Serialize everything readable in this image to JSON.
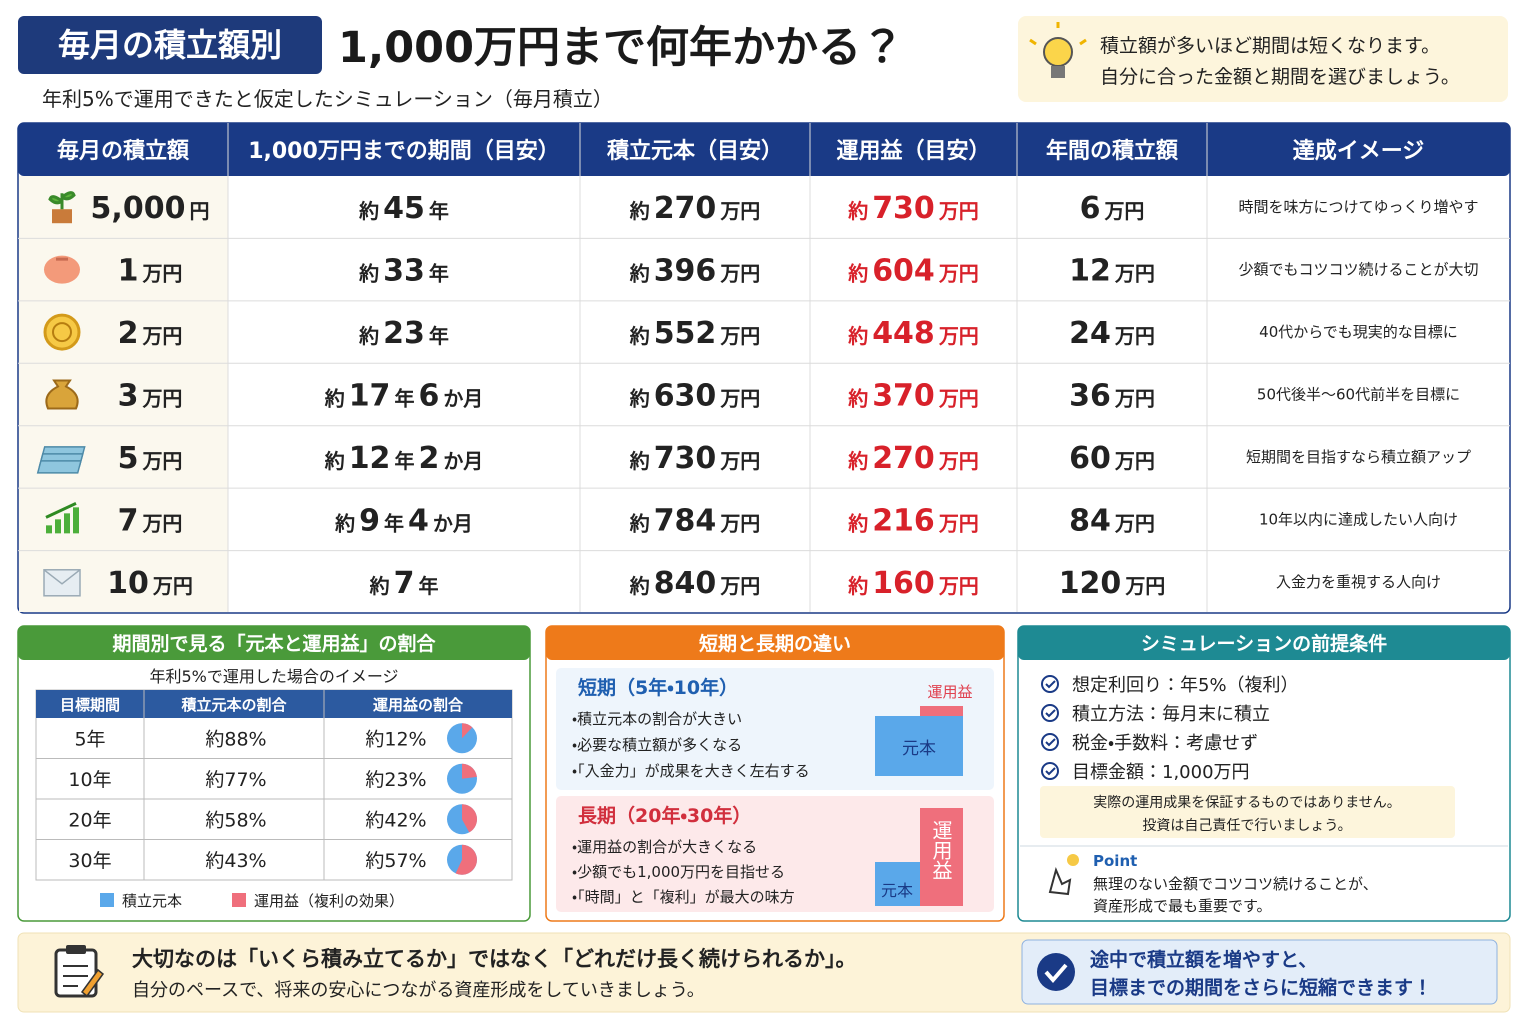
{
  "header": {
    "badge": "毎月の積立額別",
    "title": "1,000万円まで何年かかる？",
    "subtitle": "年利5%で運用できたと仮定したシミュレーション（毎月積立）"
  },
  "tip": {
    "lines": [
      "積立額が多いほど期間は短くなります。",
      "自分に合った金額と期間を選びましょう。"
    ]
  },
  "table": {
    "headers": [
      "毎月の積立額",
      "1,000万円までの期間（目安）",
      "積立元本（目安）",
      "運用益（目安）",
      "年間の積立額",
      "達成イメージ"
    ],
    "rows": [
      [
        [
          "5,000",
          "円"
        ],
        [
          "約",
          "45",
          "年"
        ],
        [
          "約",
          "270",
          "万円"
        ],
        [
          "約",
          "730",
          "万円"
        ],
        [
          "6",
          "万円"
        ],
        "時間を味方につけてゆっくり増やす"
      ],
      [
        [
          "1",
          "万円"
        ],
        [
          "約",
          "33",
          "年"
        ],
        [
          "約",
          "396",
          "万円"
        ],
        [
          "約",
          "604",
          "万円"
        ],
        [
          "12",
          "万円"
        ],
        "少額でもコツコツ続けることが大切"
      ],
      [
        [
          "2",
          "万円"
        ],
        [
          "約",
          "23",
          "年"
        ],
        [
          "約",
          "552",
          "万円"
        ],
        [
          "約",
          "448",
          "万円"
        ],
        [
          "24",
          "万円"
        ],
        "40代からでも現実的な目標に"
      ],
      [
        [
          "3",
          "万円"
        ],
        [
          "約",
          "17",
          "年",
          "6",
          "か月"
        ],
        [
          "約",
          "630",
          "万円"
        ],
        [
          "約",
          "370",
          "万円"
        ],
        [
          "36",
          "万円"
        ],
        "50代後半〜60代前半を目標に"
      ],
      [
        [
          "5",
          "万円"
        ],
        [
          "約",
          "12",
          "年",
          "2",
          "か月"
        ],
        [
          "約",
          "730",
          "万円"
        ],
        [
          "約",
          "270",
          "万円"
        ],
        [
          "60",
          "万円"
        ],
        "短期間を目指すなら積立額アップ"
      ],
      [
        [
          "7",
          "万円"
        ],
        [
          "約",
          "9",
          "年",
          "4",
          "か月"
        ],
        [
          "約",
          "784",
          "万円"
        ],
        [
          "約",
          "216",
          "万円"
        ],
        [
          "84",
          "万円"
        ],
        "10年以内に達成したい人向け"
      ],
      [
        [
          "10",
          "万円"
        ],
        [
          "約",
          "7",
          "年"
        ],
        [
          "約",
          "840",
          "万円"
        ],
        [
          "約",
          "160",
          "万円"
        ],
        [
          "120",
          "万円"
        ],
        "入金力を重視する人向け"
      ]
    ]
  },
  "ratio_panel": {
    "title": "期間別で見る「元本と運用益」の割合",
    "subtitle": "年利5%で運用した場合のイメージ",
    "headers": [
      "目標期間",
      "積立元本の割合",
      "運用益の割合"
    ],
    "rows": [
      {
        "period": "5年",
        "principal_label": "約88%",
        "gain_label": "約12%",
        "gain": 12
      },
      {
        "period": "10年",
        "principal_label": "約77%",
        "gain_label": "約23%",
        "gain": 23
      },
      {
        "period": "20年",
        "principal_label": "約58%",
        "gain_label": "約42%",
        "gain": 42
      },
      {
        "period": "30年",
        "principal_label": "約43%",
        "gain_label": "約57%",
        "gain": 57
      }
    ],
    "legend": [
      "積立元本",
      "運用益（複利の効果）"
    ]
  },
  "compare_panel": {
    "title": "短期と長期の違い",
    "short": {
      "heading": "短期（5年・10年）",
      "bullets": [
        "・積立元本の割合が大きい",
        "・必要な積立額が多くなる",
        "・「入金力」が成果を大きく左右する"
      ],
      "gain_label": "運用益",
      "principal_label": "元本"
    },
    "long": {
      "heading": "長期（20年・30年）",
      "bullets": [
        "・運用益の割合が大きくなる",
        "・少額でも1,000万円を目指せる",
        "・「時間」と「複利」が最大の味方"
      ],
      "gain_label": "運用益",
      "principal_label": "元本"
    }
  },
  "conditions_panel": {
    "title": "シミュレーションの前提条件",
    "items": [
      "想定利回り：年5%（複利）",
      "積立方法：毎月末に積立",
      "税金・手数料：考慮せず",
      "目標金額：1,000万円"
    ],
    "notice": [
      "実際の運用成果を保証するものではありません。",
      "投資は自己責任で行いましょう。"
    ],
    "point_label": "Point",
    "point_lines": [
      "無理のない金額でコツコツ続けることが、",
      "資産形成で最も重要です。"
    ]
  },
  "footer": {
    "main": "大切なのは「いくら積み立てるか」ではなく「どれだけ長く続けられるか」。",
    "sub": "自分のペースで、将来の安心につながる資産形成をしていきましょう。",
    "callout": [
      "途中で積立額を増やすと、",
      "目標までの期間をさらに短縮できます！"
    ]
  }
}
